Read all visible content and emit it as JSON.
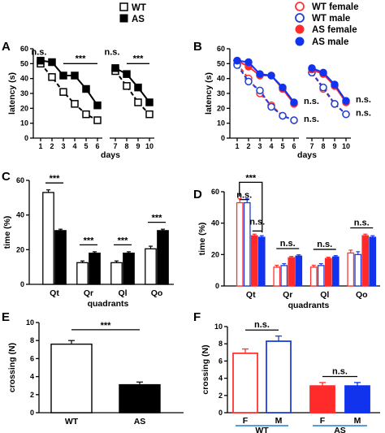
{
  "legend_left": [
    {
      "label": "WT",
      "fill": "#ffffff",
      "stroke": "#000000",
      "shape": "square"
    },
    {
      "label": "AS",
      "fill": "#000000",
      "stroke": "#000000",
      "shape": "square"
    }
  ],
  "legend_right": [
    {
      "label": "WT female",
      "fill": "#ffffff",
      "stroke": "#ff3333",
      "shape": "circle"
    },
    {
      "label": "WT male",
      "fill": "#ffffff",
      "stroke": "#1f3fd6",
      "shape": "circle"
    },
    {
      "label": "AS female",
      "fill": "#ff2a2a",
      "stroke": "#ff2a2a",
      "shape": "circle"
    },
    {
      "label": "AS male",
      "fill": "#1133ee",
      "stroke": "#1133ee",
      "shape": "circle"
    }
  ],
  "colors": {
    "wt_f": "#ff3333",
    "wt_m": "#1f3fd6",
    "as_f": "#ff2a2a",
    "as_m": "#1133ee",
    "black": "#000000"
  },
  "panels": {
    "A": "A",
    "B": "B",
    "C": "C",
    "D": "D",
    "E": "E",
    "F": "F"
  },
  "chart_data": [
    {
      "panel": "A",
      "type": "line",
      "ylabel": "latency (s)",
      "xlabel": "days",
      "ylim": [
        0,
        60
      ],
      "yticks": [
        0,
        10,
        20,
        30,
        40,
        50,
        60
      ],
      "xticks": [
        1,
        2,
        3,
        4,
        5,
        6,
        7,
        8,
        9,
        10
      ],
      "series": [
        {
          "name": "WT",
          "x": [
            1,
            2,
            3,
            4,
            5,
            6
          ],
          "y": [
            50,
            41,
            31,
            23,
            16,
            12
          ],
          "style": "open-square-dashed"
        },
        {
          "name": "WT",
          "x": [
            7,
            8,
            9,
            10
          ],
          "y": [
            45,
            35,
            24,
            16
          ],
          "style": "open-square-dashed"
        },
        {
          "name": "AS",
          "x": [
            1,
            2,
            3,
            4,
            5,
            6
          ],
          "y": [
            52,
            51,
            42,
            42,
            33,
            22
          ],
          "style": "filled-square-solid"
        },
        {
          "name": "AS",
          "x": [
            7,
            8,
            9,
            10
          ],
          "y": [
            47,
            43,
            34,
            24
          ],
          "style": "filled-square-solid"
        }
      ],
      "annotations": [
        "n.s.",
        "***",
        "n.s.",
        "***"
      ]
    },
    {
      "panel": "B",
      "type": "line",
      "ylabel": "latency (s)",
      "xlabel": "days",
      "ylim": [
        0,
        60
      ],
      "yticks": [
        0,
        10,
        20,
        30,
        40,
        50,
        60
      ],
      "xticks": [
        1,
        2,
        3,
        4,
        5,
        6,
        7,
        8,
        9,
        10
      ],
      "series": [
        {
          "name": "WT female",
          "x": [
            1,
            2,
            3,
            4,
            5,
            6
          ],
          "y": [
            50,
            40,
            30,
            22,
            15,
            12
          ],
          "style": "wt_f"
        },
        {
          "name": "WT female",
          "x": [
            7,
            8,
            9,
            10
          ],
          "y": [
            44,
            33,
            23,
            16
          ],
          "style": "wt_f"
        },
        {
          "name": "WT male",
          "x": [
            1,
            2,
            3,
            4,
            5,
            6
          ],
          "y": [
            49,
            38,
            32,
            21,
            15,
            12
          ],
          "style": "wt_m"
        },
        {
          "name": "WT male",
          "x": [
            7,
            8,
            9,
            10
          ],
          "y": [
            44,
            34,
            23,
            16
          ],
          "style": "wt_m"
        },
        {
          "name": "AS female",
          "x": [
            1,
            2,
            3,
            4,
            5,
            6
          ],
          "y": [
            52,
            48,
            42,
            42,
            33,
            23
          ],
          "style": "as_f"
        },
        {
          "name": "AS female",
          "x": [
            7,
            8,
            9,
            10
          ],
          "y": [
            46,
            43,
            35,
            24
          ],
          "style": "as_f"
        },
        {
          "name": "AS male",
          "x": [
            1,
            2,
            3,
            4,
            5,
            6
          ],
          "y": [
            52,
            51,
            43,
            42,
            34,
            24
          ],
          "style": "as_m"
        },
        {
          "name": "AS male",
          "x": [
            7,
            8,
            9,
            10
          ],
          "y": [
            47,
            44,
            36,
            25
          ],
          "style": "as_m"
        }
      ],
      "annotations": [
        "n.s.",
        "n.s.",
        "n.s.",
        "n.s."
      ]
    },
    {
      "panel": "C",
      "type": "bar",
      "ylabel": "time (%)",
      "xlabel": "quadrants",
      "ylim": [
        0,
        60
      ],
      "yticks": [
        0,
        20,
        40,
        60
      ],
      "categories": [
        "Qt",
        "Qr",
        "Ql",
        "Qo"
      ],
      "series": [
        {
          "name": "WT",
          "values": [
            53,
            12.5,
            12.5,
            20.5
          ],
          "err": [
            1.5,
            1,
            1,
            1.5
          ]
        },
        {
          "name": "AS",
          "values": [
            31,
            18,
            18,
            31
          ],
          "err": [
            0.8,
            0.8,
            0.8,
            0.8
          ]
        }
      ],
      "annotations": [
        "***",
        "***",
        "***",
        "***"
      ]
    },
    {
      "panel": "D",
      "type": "bar",
      "ylabel": "time (%)",
      "xlabel": "quadrants",
      "ylim": [
        0,
        60
      ],
      "yticks": [
        0,
        20,
        40,
        60
      ],
      "categories": [
        "Qt",
        "Qr",
        "Ql",
        "Qo"
      ],
      "series": [
        {
          "name": "WT female",
          "values": [
            53,
            12,
            12,
            21
          ],
          "err": [
            2.5,
            1.2,
            1.2,
            1.8
          ]
        },
        {
          "name": "WT male",
          "values": [
            53,
            13,
            13,
            20
          ],
          "err": [
            2.5,
            1.2,
            1.2,
            1.8
          ]
        },
        {
          "name": "AS female",
          "values": [
            32,
            18,
            17.5,
            32
          ],
          "err": [
            1,
            0.8,
            0.8,
            1
          ]
        },
        {
          "name": "AS male",
          "values": [
            31,
            19,
            18.5,
            31
          ],
          "err": [
            1,
            0.8,
            0.8,
            1
          ]
        }
      ],
      "annotations": [
        "***",
        "n.s.",
        "n.s.",
        "n.s.",
        "n.s.",
        "n.s."
      ]
    },
    {
      "panel": "E",
      "type": "bar",
      "ylabel": "crossing (N)",
      "ylim": [
        0,
        10
      ],
      "yticks": [
        0,
        2,
        4,
        6,
        8,
        10
      ],
      "categories": [
        "WT",
        "AS"
      ],
      "values": [
        7.6,
        3.1
      ],
      "err": [
        0.4,
        0.3
      ],
      "annotations": [
        "***"
      ]
    },
    {
      "panel": "F",
      "type": "bar",
      "ylabel": "crossing (N)",
      "ylim": [
        0,
        10
      ],
      "yticks": [
        0,
        2,
        4,
        6,
        8,
        10
      ],
      "groups": [
        {
          "label": "WT",
          "bars": [
            "F",
            "M"
          ]
        },
        {
          "label": "AS",
          "bars": [
            "F",
            "M"
          ]
        }
      ],
      "values": [
        6.9,
        8.3,
        3.1,
        3.1
      ],
      "err": [
        0.5,
        0.6,
        0.4,
        0.4
      ],
      "annotations": [
        "n.s.",
        "n.s."
      ]
    }
  ]
}
